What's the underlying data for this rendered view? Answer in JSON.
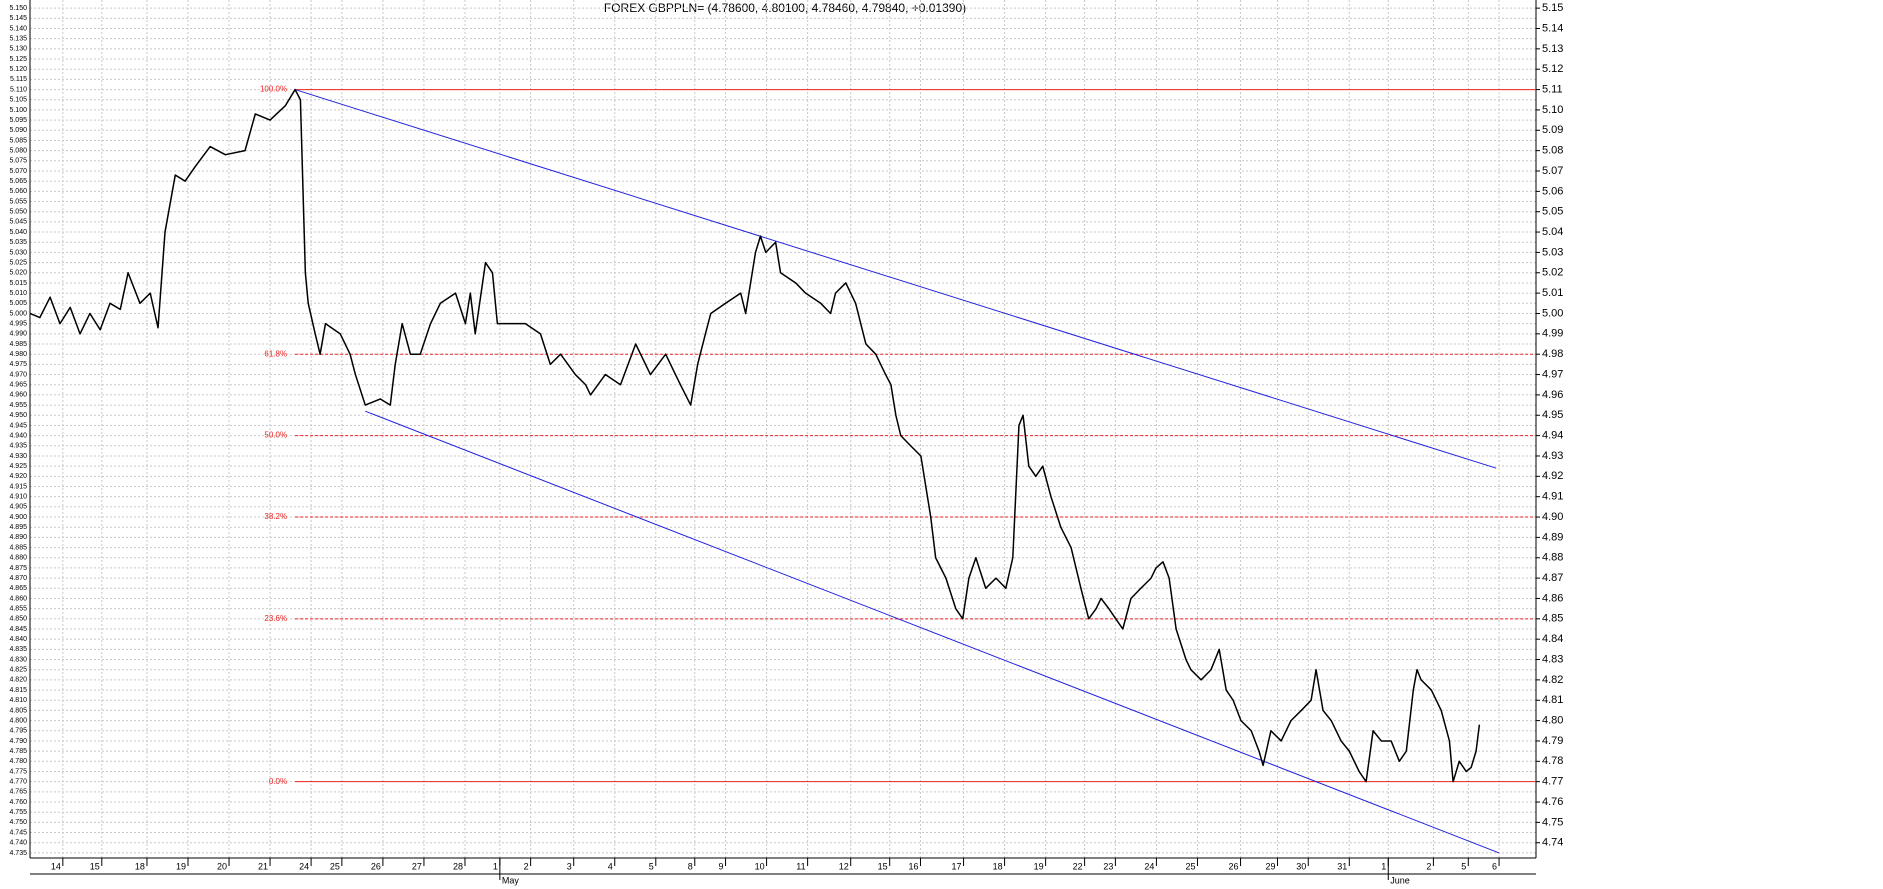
{
  "chart_data": {
    "type": "line",
    "title": "FOREX GBPPLN= (4.78600, 4.80100, 4.78460, 4.79840, +0.01390)",
    "xlim": [
      0,
      36.7
    ],
    "ylim": [
      4.7325,
      5.154
    ],
    "y2lim": [
      4.7325,
      5.154
    ],
    "grid": true,
    "xticks": [
      {
        "value": 0.8,
        "label": "14"
      },
      {
        "value": 1.75,
        "label": "15"
      },
      {
        "value": 2.85,
        "label": "18"
      },
      {
        "value": 3.85,
        "label": "19"
      },
      {
        "value": 4.85,
        "label": "20"
      },
      {
        "value": 5.85,
        "label": "21"
      },
      {
        "value": 6.85,
        "label": "24"
      },
      {
        "value": 7.6,
        "label": "25"
      },
      {
        "value": 8.6,
        "label": "26"
      },
      {
        "value": 9.6,
        "label": "27"
      },
      {
        "value": 10.6,
        "label": "28"
      },
      {
        "value": 11.45,
        "label": "1"
      },
      {
        "value": 12.2,
        "label": "2"
      },
      {
        "value": 13.25,
        "label": "3"
      },
      {
        "value": 14.25,
        "label": "4"
      },
      {
        "value": 15.25,
        "label": "5"
      },
      {
        "value": 16.2,
        "label": "8"
      },
      {
        "value": 16.95,
        "label": "9"
      },
      {
        "value": 17.95,
        "label": "10"
      },
      {
        "value": 18.95,
        "label": "11"
      },
      {
        "value": 20.0,
        "label": "12"
      },
      {
        "value": 20.95,
        "label": "15"
      },
      {
        "value": 21.7,
        "label": "16"
      },
      {
        "value": 22.75,
        "label": "17"
      },
      {
        "value": 23.75,
        "label": "18"
      },
      {
        "value": 24.75,
        "label": "19"
      },
      {
        "value": 25.7,
        "label": "22"
      },
      {
        "value": 26.45,
        "label": "23"
      },
      {
        "value": 27.45,
        "label": "24"
      },
      {
        "value": 28.45,
        "label": "25"
      },
      {
        "value": 29.5,
        "label": "26"
      },
      {
        "value": 30.4,
        "label": "29"
      },
      {
        "value": 31.15,
        "label": "30"
      },
      {
        "value": 32.15,
        "label": "31"
      },
      {
        "value": 33.1,
        "label": "1"
      },
      {
        "value": 34.2,
        "label": "2"
      },
      {
        "value": 35.05,
        "label": "5"
      },
      {
        "value": 35.8,
        "label": "6"
      }
    ],
    "month_labels": [
      {
        "text": "May",
        "x": 11.45
      },
      {
        "text": "June",
        "x": 33.1
      }
    ],
    "yticks": [
      {
        "value": 5.15,
        "label": "5.150"
      },
      5.145,
      {
        "value": 5.14,
        "label": "5.140"
      },
      5.135,
      {
        "value": 5.13,
        "label": "5.130"
      },
      5.125,
      {
        "value": 5.12,
        "label": "5.120"
      },
      5.115,
      {
        "value": 5.11,
        "label": "5.110"
      },
      5.105,
      {
        "value": 5.1,
        "label": "5.100"
      },
      5.095,
      {
        "value": 5.09,
        "label": "5.090"
      },
      5.085,
      {
        "value": 5.08,
        "label": "5.080"
      },
      5.075,
      {
        "value": 5.07,
        "label": "5.070"
      },
      5.065,
      {
        "value": 5.06,
        "label": "5.060"
      },
      5.055,
      {
        "value": 5.05,
        "label": "5.050"
      },
      5.045,
      {
        "value": 5.04,
        "label": "5.040"
      },
      5.035,
      {
        "value": 5.03,
        "label": "5.030"
      },
      5.025,
      {
        "value": 5.02,
        "label": "5.020"
      },
      5.015,
      {
        "value": 5.01,
        "label": "5.010"
      },
      5.005,
      {
        "value": 5,
        "label": "5.000"
      },
      4.995,
      {
        "value": 4.99,
        "label": "4.990"
      },
      4.985,
      {
        "value": 4.98,
        "label": "4.980"
      },
      4.975,
      {
        "value": 4.97,
        "label": "4.970"
      },
      4.965,
      {
        "value": 4.96,
        "label": "4.960"
      },
      4.955,
      {
        "value": 4.95,
        "label": "4.950"
      },
      4.945,
      {
        "value": 4.94,
        "label": "4.940"
      },
      4.935,
      {
        "value": 4.93,
        "label": "4.930"
      },
      4.925,
      {
        "value": 4.92,
        "label": "4.920"
      },
      4.915,
      {
        "value": 4.91,
        "label": "4.910"
      },
      4.905,
      {
        "value": 4.9,
        "label": "4.900"
      },
      4.895,
      {
        "value": 4.89,
        "label": "4.890"
      },
      4.885,
      {
        "value": 4.88,
        "label": "4.880"
      },
      4.875,
      {
        "value": 4.87,
        "label": "4.870"
      },
      4.865,
      {
        "value": 4.86,
        "label": "4.860"
      },
      4.855,
      {
        "value": 4.85,
        "label": "4.850"
      },
      4.845,
      {
        "value": 4.84,
        "label": "4.840"
      },
      4.835,
      {
        "value": 4.83,
        "label": "4.830"
      },
      4.825,
      {
        "value": 4.82,
        "label": "4.820"
      },
      4.815,
      {
        "value": 4.81,
        "label": "4.810"
      },
      4.805,
      {
        "value": 4.8,
        "label": "4.800"
      },
      4.795,
      {
        "value": 4.79,
        "label": "4.790"
      },
      4.785,
      {
        "value": 4.78,
        "label": "4.780"
      },
      4.775,
      {
        "value": 4.77,
        "label": "4.770"
      },
      4.765,
      {
        "value": 4.76,
        "label": "4.760"
      },
      4.755,
      {
        "value": 4.75,
        "label": "4.750"
      },
      4.745,
      {
        "value": 4.74,
        "label": "4.740"
      },
      4.735
    ],
    "y2ticks": [
      5.15,
      5.14,
      5.13,
      5.12,
      5.11,
      {
        "value": 5.1,
        "label": "5.10"
      },
      5.09,
      5.08,
      5.07,
      5.06,
      5.05,
      5.04,
      5.03,
      5.02,
      5.01,
      {
        "value": 5,
        "label": "5.00"
      },
      4.99,
      4.98,
      4.97,
      4.96,
      4.95,
      4.94,
      4.93,
      4.92,
      4.91,
      {
        "value": 4.9,
        "label": "4.90"
      },
      4.89,
      4.88,
      4.87,
      4.86,
      4.85,
      4.84,
      4.83,
      4.82,
      4.81,
      {
        "value": 4.8,
        "label": "4.80"
      },
      4.79,
      4.78,
      4.77,
      4.76,
      4.75,
      4.74
    ],
    "series": [
      {
        "name": "GBPPLN",
        "color": "#000000",
        "x": [
          0,
          0.24,
          0.49,
          0.73,
          0.98,
          1.22,
          1.46,
          1.71,
          1.95,
          2.2,
          2.39,
          2.68,
          2.93,
          3.12,
          3.29,
          3.54,
          3.78,
          4.02,
          4.39,
          4.76,
          5.24,
          5.49,
          5.85,
          6.22,
          6.46,
          6.59,
          6.71,
          6.78,
          6.95,
          7.07,
          7.2,
          7.56,
          7.8,
          7.93,
          8.17,
          8.54,
          8.78,
          8.9,
          9.07,
          9.27,
          9.51,
          9.76,
          10,
          10.37,
          10.61,
          10.73,
          10.85,
          11.1,
          11.27,
          11.39,
          11.71,
          12.07,
          12.44,
          12.68,
          12.93,
          13.29,
          13.54,
          13.66,
          14.02,
          14.39,
          14.76,
          15.12,
          15.49,
          15.85,
          16.1,
          16.27,
          16.46,
          16.59,
          16.95,
          17.32,
          17.44,
          17.68,
          17.8,
          17.93,
          18.17,
          18.29,
          18.66,
          18.9,
          19.27,
          19.51,
          19.63,
          19.88,
          20.12,
          20.37,
          20.61,
          20.85,
          20.98,
          21.1,
          21.22,
          21.46,
          21.71,
          21.95,
          22.07,
          22.32,
          22.56,
          22.73,
          22.88,
          23.05,
          23.29,
          23.54,
          23.78,
          23.95,
          24.1,
          24.2,
          24.34,
          24.51,
          24.68,
          24.88,
          25.12,
          25.37,
          25.61,
          25.8,
          25.98,
          26.1,
          26.29,
          26.46,
          26.63,
          26.83,
          27.07,
          27.32,
          27.44,
          27.61,
          27.76,
          27.93,
          28.17,
          28.29,
          28.54,
          28.78,
          28.98,
          29.15,
          29.32,
          29.51,
          29.76,
          29.95,
          30.05,
          30.24,
          30.49,
          30.73,
          30.98,
          31.22,
          31.34,
          31.51,
          31.71,
          31.95,
          32.15,
          32.39,
          32.56,
          32.73,
          32.93,
          33.17,
          33.37,
          33.54,
          33.71,
          33.8,
          33.9,
          34.15,
          34.39,
          34.59,
          34.68,
          34.83,
          35,
          35.12,
          35.24,
          35.32
        ],
        "values": [
          5.0,
          4.998,
          5.008,
          4.995,
          5.003,
          4.99,
          5.0,
          4.992,
          5.005,
          5.002,
          5.02,
          5.005,
          5.01,
          4.993,
          5.04,
          5.068,
          5.065,
          5.072,
          5.082,
          5.078,
          5.08,
          5.098,
          5.095,
          5.102,
          5.11,
          5.105,
          5.02,
          5.005,
          4.99,
          4.98,
          4.995,
          4.99,
          4.98,
          4.97,
          4.955,
          4.958,
          4.955,
          4.975,
          4.995,
          4.98,
          4.98,
          4.995,
          5.005,
          5.01,
          4.995,
          5.01,
          4.99,
          5.025,
          5.02,
          4.995,
          4.995,
          4.995,
          4.99,
          4.975,
          4.98,
          4.97,
          4.965,
          4.96,
          4.97,
          4.965,
          4.985,
          4.97,
          4.98,
          4.965,
          4.955,
          4.975,
          4.99,
          5.0,
          5.005,
          5.01,
          5.0,
          5.03,
          5.038,
          5.03,
          5.035,
          5.02,
          5.015,
          5.01,
          5.005,
          5.0,
          5.01,
          5.015,
          5.005,
          4.985,
          4.98,
          4.97,
          4.965,
          4.95,
          4.94,
          4.935,
          4.93,
          4.9,
          4.88,
          4.87,
          4.855,
          4.85,
          4.87,
          4.88,
          4.865,
          4.87,
          4.865,
          4.88,
          4.945,
          4.95,
          4.925,
          4.92,
          4.925,
          4.91,
          4.895,
          4.885,
          4.865,
          4.85,
          4.855,
          4.86,
          4.855,
          4.85,
          4.845,
          4.86,
          4.865,
          4.87,
          4.875,
          4.878,
          4.87,
          4.845,
          4.83,
          4.825,
          4.82,
          4.825,
          4.835,
          4.815,
          4.81,
          4.8,
          4.795,
          4.785,
          4.778,
          4.795,
          4.79,
          4.8,
          4.805,
          4.81,
          4.825,
          4.805,
          4.8,
          4.79,
          4.785,
          4.775,
          4.77,
          4.795,
          4.79,
          4.79,
          4.78,
          4.785,
          4.815,
          4.825,
          4.82,
          4.815,
          4.805,
          4.79,
          4.77,
          4.78,
          4.775,
          4.777,
          4.785,
          4.798
        ]
      }
    ],
    "channel_lines": [
      {
        "color": "#2222dd",
        "x": [
          6.46,
          35.73
        ],
        "values": [
          5.11,
          4.924
        ]
      },
      {
        "color": "#2222dd",
        "x": [
          8.17,
          35.8
        ],
        "values": [
          4.952,
          4.735
        ]
      }
    ],
    "fib_color": "#ee2222",
    "fib_x": 6.46,
    "fib_levels": [
      {
        "label": "100.0%",
        "price": 5.11,
        "style": "solid"
      },
      {
        "label": "61.8%",
        "price": 4.98,
        "style": "dashed"
      },
      {
        "label": "50.0%",
        "price": 4.94,
        "style": "dashed"
      },
      {
        "label": "38.2%",
        "price": 4.9,
        "style": "dashed"
      },
      {
        "label": "23.6%",
        "price": 4.85,
        "style": "dashed"
      },
      {
        "label": "0.0%",
        "price": 4.77,
        "style": "solid"
      }
    ]
  }
}
